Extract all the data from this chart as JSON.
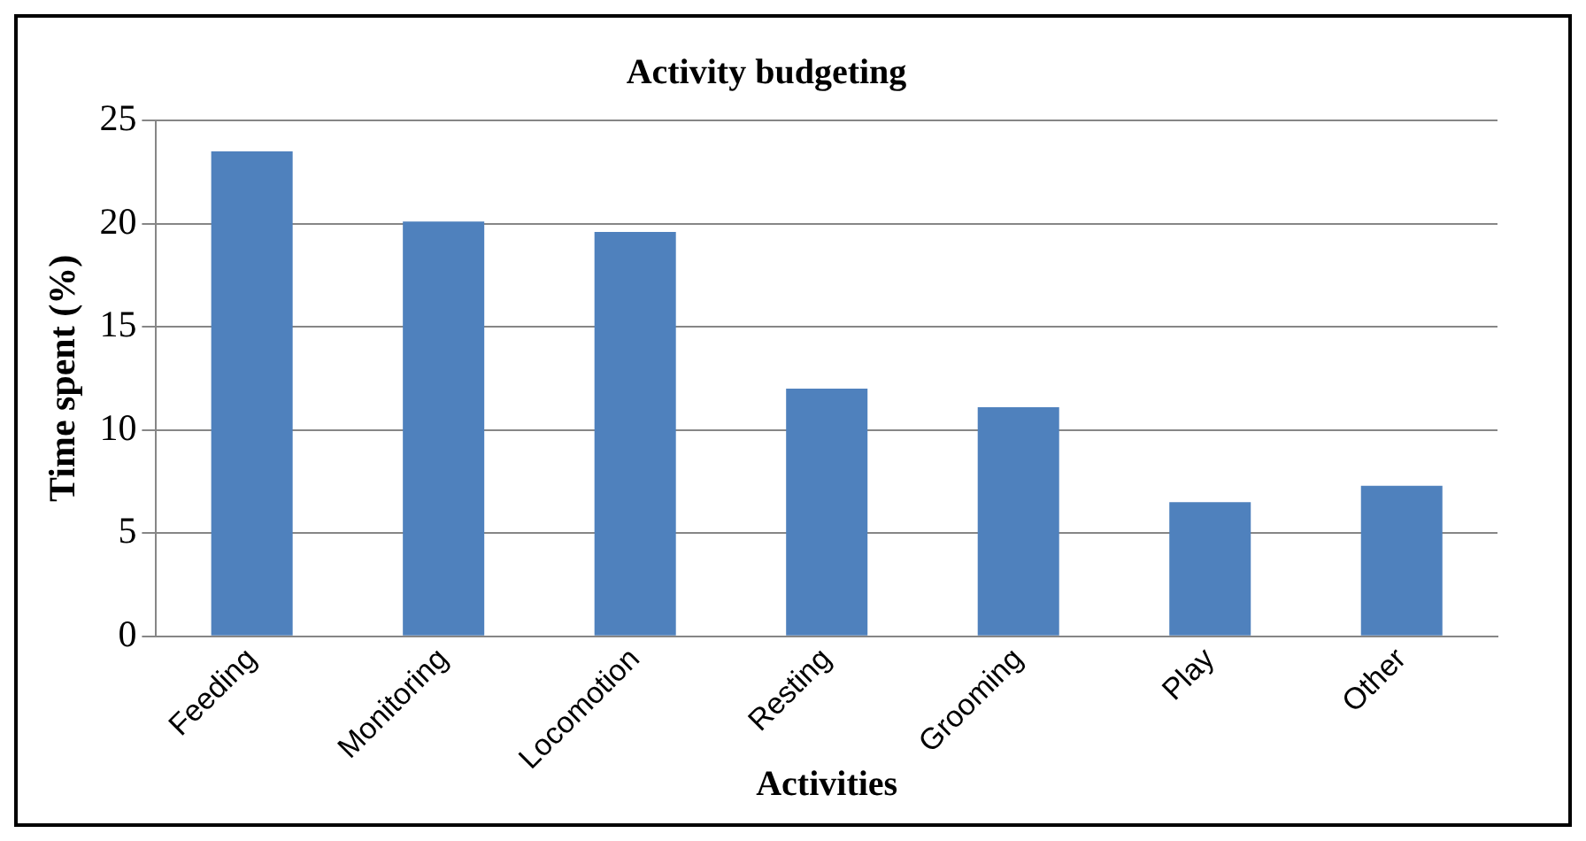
{
  "chart_data": {
    "type": "bar",
    "title": "Activity budgeting",
    "xlabel": "Activities",
    "ylabel": "Time spent (%)",
    "categories": [
      "Feeding",
      "Monitoring",
      "Locomotion",
      "Resting",
      "Grooming",
      "Play",
      "Other"
    ],
    "values": [
      23.5,
      20.1,
      19.6,
      12.0,
      11.1,
      6.5,
      7.3
    ],
    "color": "#4f81bd",
    "ylim": [
      0,
      25
    ],
    "yticks": [
      0,
      5,
      10,
      15,
      20,
      25
    ],
    "grid": "y",
    "legend": false
  }
}
